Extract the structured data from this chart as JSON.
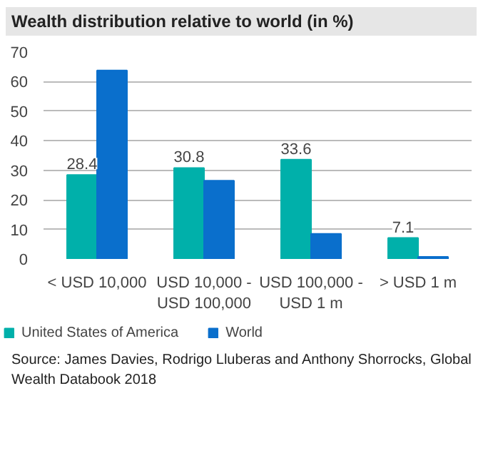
{
  "chart_data": {
    "type": "bar",
    "title": "Wealth distribution relative to world (in %)",
    "categories": [
      "< USD 10,000",
      "USD 10,000 -\nUSD 100,000",
      "USD 100,000 -\nUSD 1 m",
      "> USD 1 m"
    ],
    "series": [
      {
        "name": "United States of America",
        "color": "#00b0aa",
        "values": [
          28.4,
          30.8,
          33.6,
          7.1
        ],
        "value_labels": [
          "28.4",
          "30.8",
          "33.6",
          "7.1"
        ]
      },
      {
        "name": "World",
        "color": "#0a6fcc",
        "values": [
          63.8,
          26.5,
          8.5,
          0.7
        ]
      }
    ],
    "ylim": [
      0,
      70
    ],
    "yticks": [
      0,
      10,
      20,
      30,
      40,
      50,
      60,
      70
    ],
    "grid": "y",
    "legend": "bottom left",
    "annotations": [
      "Source: James Davies, Rodrigo Lluberas and Anthony Shorrocks, Global Wealth Databook 2018"
    ]
  }
}
